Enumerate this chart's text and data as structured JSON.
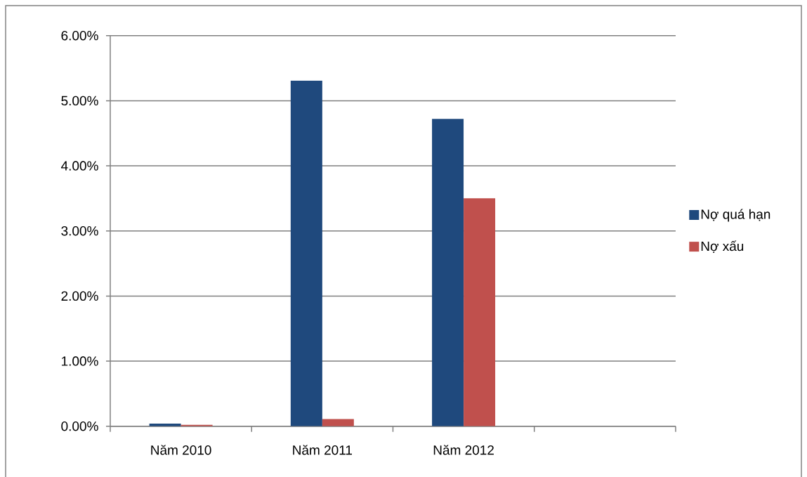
{
  "chart_data": {
    "type": "bar",
    "categories": [
      "Năm 2010",
      "Năm 2011",
      "Năm 2012",
      null
    ],
    "series": [
      {
        "name": "Nợ quá hạn",
        "color": "#1f497d",
        "values": [
          0.04,
          5.31,
          4.72,
          null
        ]
      },
      {
        "name": "Nợ xấu",
        "color": "#c0504d",
        "values": [
          0.02,
          0.11,
          3.5,
          null
        ]
      }
    ],
    "ylim": [
      0,
      6
    ],
    "yticks": [
      {
        "value": 0,
        "label": "0.00%"
      },
      {
        "value": 1,
        "label": "1.00%"
      },
      {
        "value": 2,
        "label": "2.00%"
      },
      {
        "value": 3,
        "label": "3.00%"
      },
      {
        "value": 4,
        "label": "4.00%"
      },
      {
        "value": 5,
        "label": "5.00%"
      },
      {
        "value": 6,
        "label": "6.00%"
      }
    ],
    "grid": "y",
    "legend": "right"
  }
}
